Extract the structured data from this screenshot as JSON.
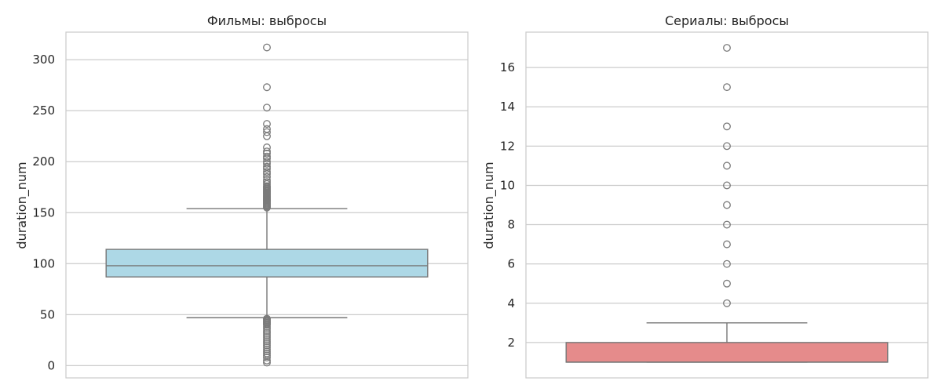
{
  "chart_data": [
    {
      "type": "box",
      "title": "Фильмы: выбросы",
      "ylabel": "duration_num",
      "xlabel": "",
      "ylim": [
        -12,
        327
      ],
      "yticks": [
        0,
        50,
        100,
        150,
        200,
        250,
        300
      ],
      "grid": true,
      "color": "#add8e6",
      "box": {
        "whisker_low": 47,
        "q1": 87,
        "median": 98,
        "q3": 114,
        "whisker_high": 154
      },
      "outliers": [
        3,
        5,
        8,
        10,
        12,
        14,
        16,
        18,
        20,
        22,
        24,
        26,
        28,
        30,
        32,
        34,
        36,
        38,
        40,
        41,
        42,
        43,
        44,
        45,
        46,
        155,
        156,
        157,
        158,
        159,
        160,
        161,
        162,
        163,
        164,
        165,
        166,
        167,
        168,
        169,
        170,
        171,
        172,
        173,
        174,
        175,
        176,
        178,
        180,
        182,
        185,
        188,
        190,
        193,
        195,
        198,
        200,
        203,
        205,
        208,
        210,
        214,
        225,
        229,
        232,
        237,
        253,
        273,
        312
      ]
    },
    {
      "type": "box",
      "title": "Сериалы: выбросы",
      "ylabel": "duration_num",
      "xlabel": "",
      "ylim": [
        0.2,
        17.8
      ],
      "yticks": [
        2,
        4,
        6,
        8,
        10,
        12,
        14,
        16
      ],
      "grid": true,
      "color": "#e58b8b",
      "box": {
        "whisker_low": 1,
        "q1": 1,
        "median": 1,
        "q3": 2,
        "whisker_high": 3
      },
      "outliers": [
        4,
        5,
        6,
        7,
        8,
        9,
        10,
        11,
        12,
        13,
        15,
        17
      ]
    }
  ]
}
